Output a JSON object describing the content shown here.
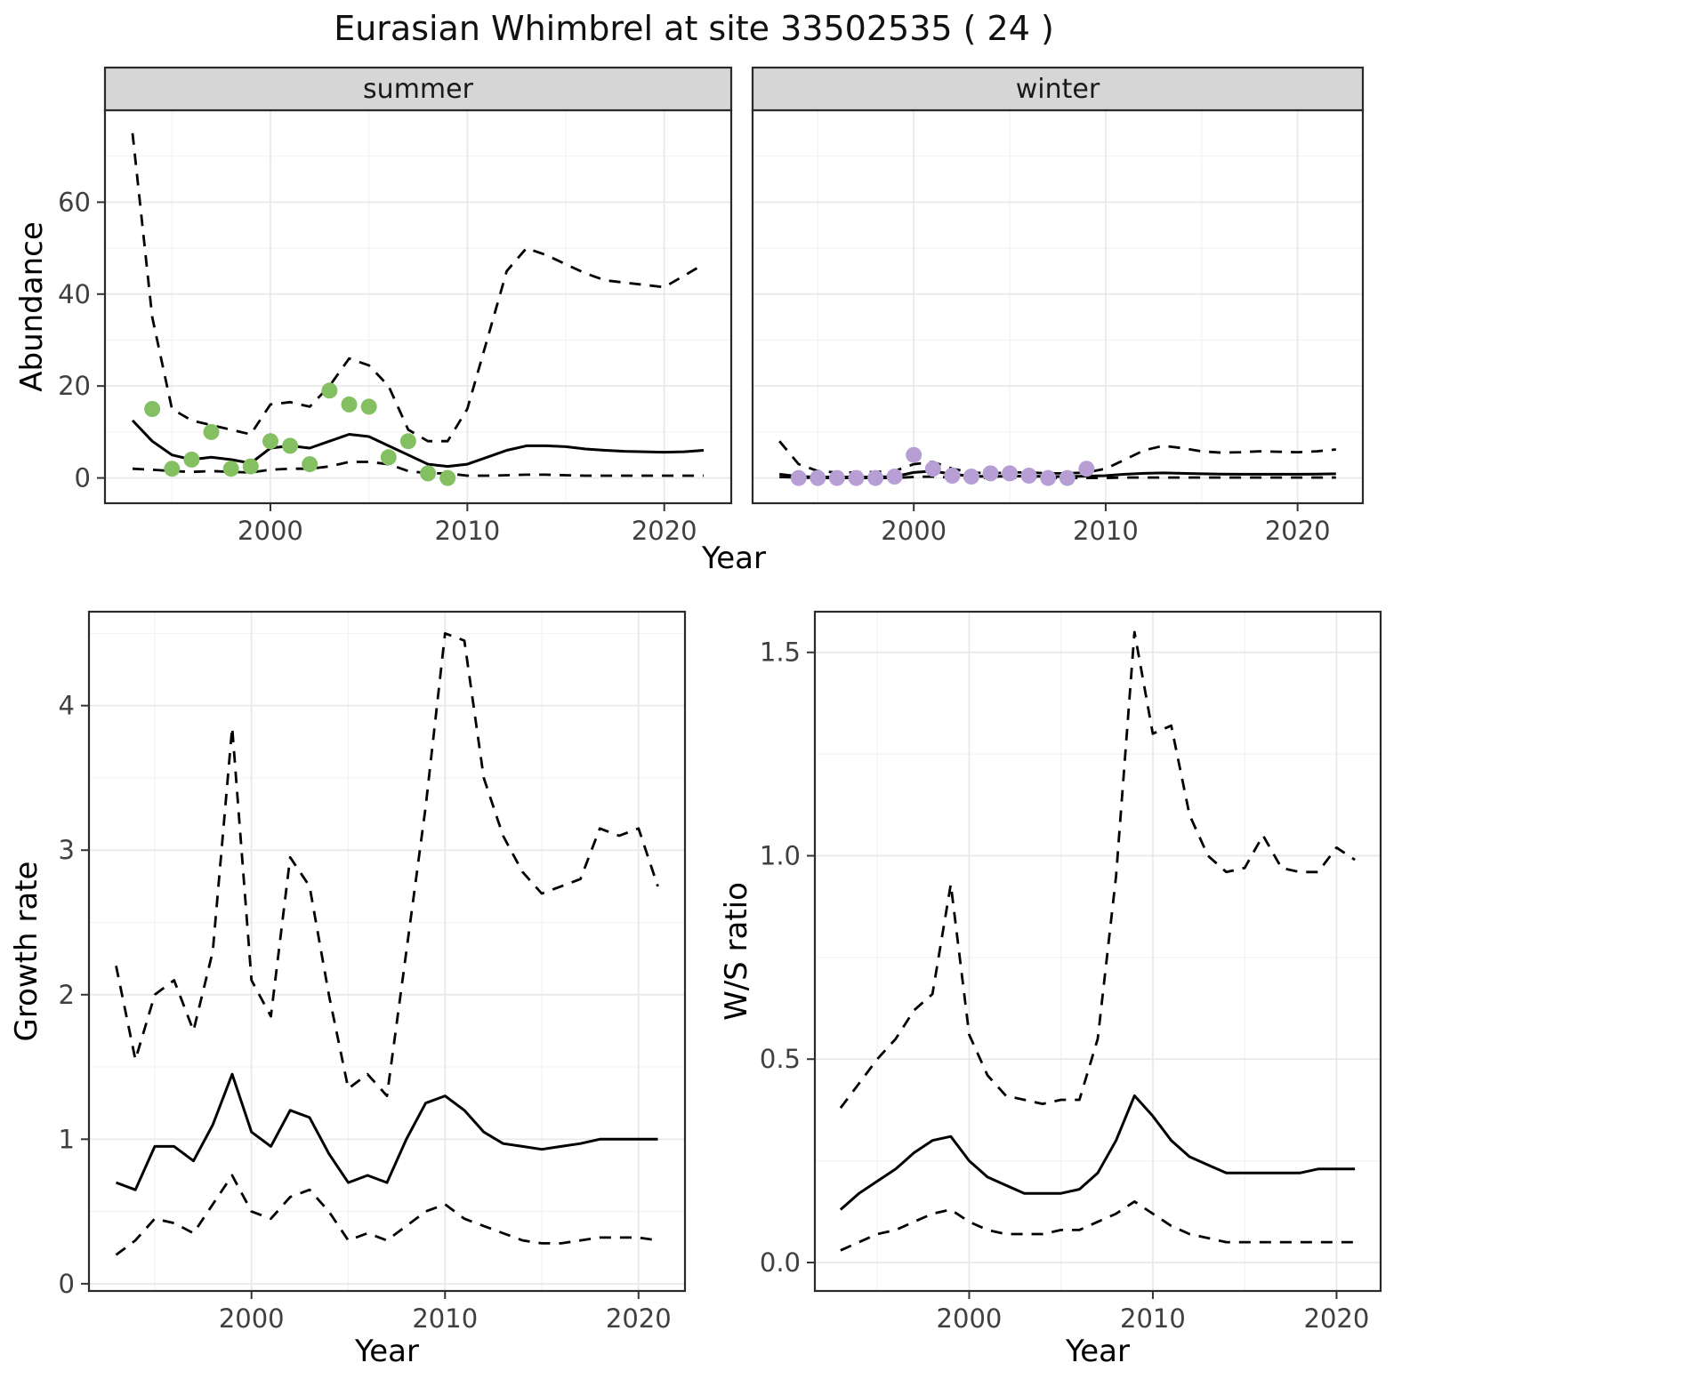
{
  "title": "Eurasian Whimbrel at site 33502535 ( 24 )",
  "labels": {
    "year": "Year",
    "abundance": "Abundance",
    "growth_rate": "Growth rate",
    "ws_ratio": "W/S ratio"
  },
  "colors": {
    "summer_points": "#84c061",
    "winter_points": "#b79fd6",
    "line": "#000000",
    "strip_bg": "#d6d6d6",
    "strip_text": "#1a1a1a",
    "panel_border": "#2a2a2a",
    "grid_major": "#e8e8e8",
    "grid_minor": "#f3f3f3",
    "tick_text": "#404040",
    "tick_mark": "#333333"
  },
  "chart_data": [
    {
      "id": "abundance-summer",
      "type": "line",
      "facet": "summer",
      "xlabel": "Year",
      "ylabel": "Abundance",
      "xlim": [
        1991.6,
        2023.4
      ],
      "ylim": [
        -5.5,
        80
      ],
      "xticks": {
        "values": [
          2000,
          2010,
          2020
        ],
        "labels": [
          "2000",
          "2010",
          "2020"
        ]
      },
      "yticks": {
        "values": [
          0,
          20,
          40,
          60
        ],
        "labels": [
          "0",
          "20",
          "40",
          "60"
        ]
      },
      "series": [
        {
          "name": "upper-ci",
          "style": "dashed",
          "x": [
            1993,
            1994,
            1995,
            1996,
            1997,
            1998,
            1999,
            2000,
            2001,
            2002,
            2003,
            2004,
            2005,
            2006,
            2007,
            2008,
            2009,
            2010,
            2011,
            2012,
            2013,
            2014,
            2015,
            2016,
            2017,
            2018,
            2019,
            2020,
            2021,
            2022
          ],
          "y": [
            75,
            35,
            15,
            12.5,
            11.5,
            10.5,
            9.5,
            16,
            16.5,
            15.5,
            20,
            26,
            24.5,
            20,
            10.5,
            8,
            8,
            15,
            30,
            45,
            50,
            48.5,
            46.5,
            44.5,
            43,
            42.5,
            42,
            41.5,
            44,
            46.5
          ]
        },
        {
          "name": "lower-ci",
          "style": "dashed",
          "x": [
            1993,
            1994,
            1995,
            1996,
            1997,
            1998,
            1999,
            2000,
            2001,
            2002,
            2003,
            2004,
            2005,
            2006,
            2007,
            2008,
            2009,
            2010,
            2011,
            2012,
            2013,
            2014,
            2015,
            2016,
            2017,
            2018,
            2019,
            2020,
            2021,
            2022
          ],
          "y": [
            2,
            1.8,
            1.5,
            1.3,
            1.5,
            1.3,
            1.2,
            1.8,
            2,
            2,
            2.5,
            3.5,
            3.5,
            3,
            1.5,
            1,
            1,
            0.5,
            0.5,
            0.6,
            0.7,
            0.7,
            0.6,
            0.5,
            0.5,
            0.5,
            0.5,
            0.5,
            0.5,
            0.5
          ]
        },
        {
          "name": "estimate",
          "style": "solid",
          "x": [
            1993,
            1994,
            1995,
            1996,
            1997,
            1998,
            1999,
            2000,
            2001,
            2002,
            2003,
            2004,
            2005,
            2006,
            2007,
            2008,
            2009,
            2010,
            2011,
            2012,
            2013,
            2014,
            2015,
            2016,
            2017,
            2018,
            2019,
            2020,
            2021,
            2022
          ],
          "y": [
            12.5,
            8,
            5,
            4,
            4.5,
            4,
            3.2,
            6.5,
            7,
            6.5,
            8,
            9.5,
            9,
            7,
            5,
            3,
            2.5,
            3,
            4.5,
            6,
            7,
            7,
            6.8,
            6.3,
            6,
            5.8,
            5.7,
            5.6,
            5.7,
            6
          ]
        },
        {
          "name": "observed-counts",
          "style": "points",
          "color_key": "summer_points",
          "x": [
            1994,
            1995,
            1996,
            1997,
            1998,
            1999,
            2000,
            2001,
            2002,
            2003,
            2004,
            2005,
            2006,
            2007,
            2008,
            2009
          ],
          "y": [
            15,
            2,
            4,
            10,
            2,
            2.5,
            8,
            7,
            3,
            19,
            16,
            15.5,
            4.5,
            8,
            1,
            0
          ]
        }
      ]
    },
    {
      "id": "abundance-winter",
      "type": "line",
      "facet": "winter",
      "xlabel": "Year",
      "ylabel": "Abundance",
      "xlim": [
        1991.6,
        2023.4
      ],
      "ylim": [
        -5.5,
        80
      ],
      "xticks": {
        "values": [
          2000,
          2010,
          2020
        ],
        "labels": [
          "2000",
          "2010",
          "2020"
        ]
      },
      "yticks": {
        "values": [
          0,
          20,
          40,
          60
        ],
        "labels": [
          "0",
          "20",
          "40",
          "60"
        ]
      },
      "series": [
        {
          "name": "upper-ci",
          "style": "dashed",
          "x": [
            1993,
            1994,
            1995,
            1996,
            1997,
            1998,
            1999,
            2000,
            2001,
            2002,
            2003,
            2004,
            2005,
            2006,
            2007,
            2008,
            2009,
            2010,
            2011,
            2012,
            2013,
            2014,
            2015,
            2016,
            2017,
            2018,
            2019,
            2020,
            2021,
            2022
          ],
          "y": [
            8,
            3,
            1.5,
            1.2,
            1.2,
            1.3,
            1.5,
            3,
            3.5,
            2,
            1.2,
            1,
            1.2,
            1.2,
            1,
            1,
            1.2,
            2,
            4,
            6,
            7,
            6.5,
            5.8,
            5.5,
            5.6,
            5.8,
            5.7,
            5.6,
            5.8,
            6.2
          ]
        },
        {
          "name": "lower-ci",
          "style": "dashed",
          "x": [
            1993,
            1994,
            1995,
            1996,
            1997,
            1998,
            1999,
            2000,
            2001,
            2002,
            2003,
            2004,
            2005,
            2006,
            2007,
            2008,
            2009,
            2010,
            2011,
            2012,
            2013,
            2014,
            2015,
            2016,
            2017,
            2018,
            2019,
            2020,
            2021,
            2022
          ],
          "y": [
            0.2,
            0.1,
            0,
            0,
            0,
            0,
            0,
            0.2,
            0.3,
            0.1,
            0,
            0,
            0,
            0,
            0,
            0,
            0,
            0,
            0.1,
            0.1,
            0.1,
            0.1,
            0.1,
            0.1,
            0.1,
            0.1,
            0.1,
            0.1,
            0.1,
            0.1
          ]
        },
        {
          "name": "estimate",
          "style": "solid",
          "x": [
            1993,
            1994,
            1995,
            1996,
            1997,
            1998,
            1999,
            2000,
            2001,
            2002,
            2003,
            2004,
            2005,
            2006,
            2007,
            2008,
            2009,
            2010,
            2011,
            2012,
            2013,
            2014,
            2015,
            2016,
            2017,
            2018,
            2019,
            2020,
            2021,
            2022
          ],
          "y": [
            0.8,
            0.3,
            0.2,
            0.2,
            0.2,
            0.2,
            0.3,
            1.2,
            1.5,
            0.8,
            0.4,
            0.3,
            0.4,
            0.4,
            0.3,
            0.3,
            0.4,
            0.5,
            0.8,
            1,
            1.1,
            1,
            0.9,
            0.85,
            0.8,
            0.8,
            0.8,
            0.8,
            0.85,
            0.9
          ]
        },
        {
          "name": "observed-counts",
          "style": "points",
          "color_key": "winter_points",
          "x": [
            1994,
            1995,
            1996,
            1997,
            1998,
            1999,
            2000,
            2001,
            2002,
            2003,
            2004,
            2005,
            2006,
            2007,
            2008,
            2009
          ],
          "y": [
            0,
            0,
            0,
            0,
            0,
            0.3,
            5,
            2,
            0.5,
            0.3,
            1,
            1,
            0.5,
            0,
            0,
            2
          ]
        }
      ]
    },
    {
      "id": "growth-rate",
      "type": "line",
      "facet": "",
      "xlabel": "Year",
      "ylabel": "Growth rate",
      "xlim": [
        1991.6,
        2022.4
      ],
      "ylim": [
        -0.05,
        4.65
      ],
      "xticks": {
        "values": [
          2000,
          2010,
          2020
        ],
        "labels": [
          "2000",
          "2010",
          "2020"
        ]
      },
      "yticks": {
        "values": [
          0,
          1,
          2,
          3,
          4
        ],
        "labels": [
          "0",
          "1",
          "2",
          "3",
          "4"
        ]
      },
      "series": [
        {
          "name": "upper-ci",
          "style": "dashed",
          "x": [
            1993,
            1994,
            1995,
            1996,
            1997,
            1998,
            1999,
            2000,
            2001,
            2002,
            2003,
            2004,
            2005,
            2006,
            2007,
            2008,
            2009,
            2010,
            2011,
            2012,
            2013,
            2014,
            2015,
            2016,
            2017,
            2018,
            2019,
            2020,
            2021
          ],
          "y": [
            2.2,
            1.55,
            2,
            2.1,
            1.75,
            2.3,
            3.85,
            2.1,
            1.85,
            2.95,
            2.75,
            2,
            1.35,
            1.45,
            1.3,
            2.3,
            3.3,
            4.5,
            4.45,
            3.5,
            3.1,
            2.85,
            2.7,
            2.75,
            2.8,
            3.15,
            3.1,
            3.15,
            2.75
          ]
        },
        {
          "name": "lower-ci",
          "style": "dashed",
          "x": [
            1993,
            1994,
            1995,
            1996,
            1997,
            1998,
            1999,
            2000,
            2001,
            2002,
            2003,
            2004,
            2005,
            2006,
            2007,
            2008,
            2009,
            2010,
            2011,
            2012,
            2013,
            2014,
            2015,
            2016,
            2017,
            2018,
            2019,
            2020,
            2021
          ],
          "y": [
            0.2,
            0.3,
            0.45,
            0.42,
            0.35,
            0.55,
            0.75,
            0.5,
            0.45,
            0.6,
            0.65,
            0.5,
            0.3,
            0.35,
            0.3,
            0.4,
            0.5,
            0.55,
            0.45,
            0.4,
            0.35,
            0.3,
            0.28,
            0.28,
            0.3,
            0.32,
            0.32,
            0.32,
            0.3
          ]
        },
        {
          "name": "estimate",
          "style": "solid",
          "x": [
            1993,
            1994,
            1995,
            1996,
            1997,
            1998,
            1999,
            2000,
            2001,
            2002,
            2003,
            2004,
            2005,
            2006,
            2007,
            2008,
            2009,
            2010,
            2011,
            2012,
            2013,
            2014,
            2015,
            2016,
            2017,
            2018,
            2019,
            2020,
            2021
          ],
          "y": [
            0.7,
            0.65,
            0.95,
            0.95,
            0.85,
            1.1,
            1.45,
            1.05,
            0.95,
            1.2,
            1.15,
            0.9,
            0.7,
            0.75,
            0.7,
            1,
            1.25,
            1.3,
            1.2,
            1.05,
            0.97,
            0.95,
            0.93,
            0.95,
            0.97,
            1,
            1,
            1,
            1
          ]
        }
      ]
    },
    {
      "id": "ws-ratio",
      "type": "line",
      "facet": "",
      "xlabel": "Year",
      "ylabel": "W/S ratio",
      "xlim": [
        1991.6,
        2022.4
      ],
      "ylim": [
        -0.07,
        1.6
      ],
      "xticks": {
        "values": [
          2000,
          2010,
          2020
        ],
        "labels": [
          "2000",
          "2010",
          "2020"
        ]
      },
      "yticks": {
        "values": [
          0,
          0.5,
          1,
          1.5
        ],
        "labels": [
          "0.0",
          "0.5",
          "1.0",
          "1.5"
        ]
      },
      "series": [
        {
          "name": "upper-ci",
          "style": "dashed",
          "x": [
            1993,
            1994,
            1995,
            1996,
            1997,
            1998,
            1999,
            2000,
            2001,
            2002,
            2003,
            2004,
            2005,
            2006,
            2007,
            2008,
            2009,
            2010,
            2011,
            2012,
            2013,
            2014,
            2015,
            2016,
            2017,
            2018,
            2019,
            2020,
            2021
          ],
          "y": [
            0.38,
            0.44,
            0.5,
            0.55,
            0.62,
            0.66,
            0.93,
            0.56,
            0.46,
            0.41,
            0.4,
            0.39,
            0.4,
            0.4,
            0.55,
            0.95,
            1.55,
            1.3,
            1.32,
            1.1,
            1,
            0.96,
            0.97,
            1.05,
            0.97,
            0.96,
            0.96,
            1.02,
            0.99
          ]
        },
        {
          "name": "lower-ci",
          "style": "dashed",
          "x": [
            1993,
            1994,
            1995,
            1996,
            1997,
            1998,
            1999,
            2000,
            2001,
            2002,
            2003,
            2004,
            2005,
            2006,
            2007,
            2008,
            2009,
            2010,
            2011,
            2012,
            2013,
            2014,
            2015,
            2016,
            2017,
            2018,
            2019,
            2020,
            2021
          ],
          "y": [
            0.03,
            0.05,
            0.07,
            0.08,
            0.1,
            0.12,
            0.13,
            0.1,
            0.08,
            0.07,
            0.07,
            0.07,
            0.08,
            0.08,
            0.1,
            0.12,
            0.15,
            0.12,
            0.09,
            0.07,
            0.06,
            0.05,
            0.05,
            0.05,
            0.05,
            0.05,
            0.05,
            0.05,
            0.05
          ]
        },
        {
          "name": "estimate",
          "style": "solid",
          "x": [
            1993,
            1994,
            1995,
            1996,
            1997,
            1998,
            1999,
            2000,
            2001,
            2002,
            2003,
            2004,
            2005,
            2006,
            2007,
            2008,
            2009,
            2010,
            2011,
            2012,
            2013,
            2014,
            2015,
            2016,
            2017,
            2018,
            2019,
            2020,
            2021
          ],
          "y": [
            0.13,
            0.17,
            0.2,
            0.23,
            0.27,
            0.3,
            0.31,
            0.25,
            0.21,
            0.19,
            0.17,
            0.17,
            0.17,
            0.18,
            0.22,
            0.3,
            0.41,
            0.36,
            0.3,
            0.26,
            0.24,
            0.22,
            0.22,
            0.22,
            0.22,
            0.22,
            0.23,
            0.23,
            0.23
          ]
        }
      ]
    }
  ]
}
